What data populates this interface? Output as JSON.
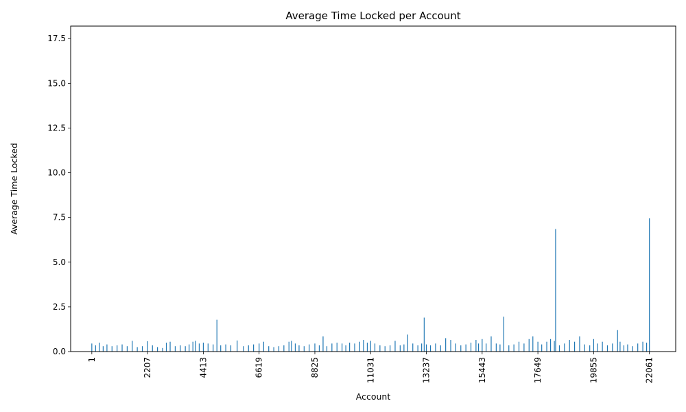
{
  "chart_data": {
    "type": "bar",
    "title": "Average Time Locked per Account",
    "xlabel": "Account",
    "ylabel": "Average Time Locked",
    "xlim": [
      -836,
      23101
    ],
    "ylim": [
      0,
      18.2
    ],
    "x_ticks": [
      1,
      2207,
      4413,
      6619,
      8825,
      11031,
      13237,
      15443,
      17649,
      19855,
      22061
    ],
    "y_ticks": [
      0.0,
      2.5,
      5.0,
      7.5,
      10.0,
      12.5,
      15.0,
      17.5
    ],
    "y_tick_labels": [
      "0.0",
      "2.5",
      "5.0",
      "7.5",
      "10.0",
      "12.5",
      "15.0",
      "17.5"
    ],
    "bar_color": "#1f77b4",
    "grid": false,
    "series": [
      {
        "x": [
          1,
          150,
          300,
          450,
          600,
          800,
          1000,
          1200,
          1400,
          1600,
          1800,
          2000,
          2207,
          2400,
          2600,
          2800,
          2950,
          3100,
          3300,
          3500,
          3700,
          3850,
          4000,
          4100,
          4250,
          4413,
          4600,
          4800,
          4950,
          5100,
          5300,
          5500,
          5750,
          6000,
          6200,
          6400,
          6619,
          6800,
          7000,
          7200,
          7400,
          7600,
          7800,
          7900,
          8050,
          8200,
          8400,
          8600,
          8825,
          9000,
          9150,
          9300,
          9500,
          9700,
          9900,
          10050,
          10200,
          10400,
          10600,
          10750,
          10900,
          11031,
          11200,
          11400,
          11600,
          11800,
          12000,
          12200,
          12350,
          12500,
          12700,
          12900,
          13050,
          13150,
          13237,
          13400,
          13600,
          13800,
          14000,
          14200,
          14400,
          14600,
          14800,
          15000,
          15200,
          15300,
          15443,
          15600,
          15800,
          16000,
          16150,
          16300,
          16500,
          16700,
          16900,
          17100,
          17300,
          17450,
          17649,
          17800,
          18000,
          18150,
          18300,
          18350,
          18500,
          18700,
          18900,
          19100,
          19300,
          19500,
          19700,
          19855,
          20000,
          20200,
          20400,
          20600,
          20800,
          20900,
          21050,
          21200,
          21400,
          21600,
          21800,
          21950,
          22061
        ],
        "values": [
          0.45,
          0.35,
          0.5,
          0.3,
          0.4,
          0.3,
          0.35,
          0.4,
          0.3,
          0.6,
          0.25,
          0.3,
          0.58,
          0.35,
          0.25,
          0.2,
          0.5,
          0.55,
          0.3,
          0.35,
          0.3,
          0.4,
          0.55,
          0.6,
          0.45,
          0.5,
          0.45,
          0.4,
          1.78,
          0.35,
          0.4,
          0.35,
          0.62,
          0.3,
          0.35,
          0.4,
          0.45,
          0.55,
          0.3,
          0.25,
          0.3,
          0.35,
          0.55,
          0.6,
          0.45,
          0.35,
          0.3,
          0.4,
          0.45,
          0.35,
          0.85,
          0.3,
          0.45,
          0.5,
          0.45,
          0.35,
          0.5,
          0.45,
          0.55,
          0.65,
          0.5,
          0.6,
          0.45,
          0.35,
          0.3,
          0.35,
          0.6,
          0.35,
          0.4,
          0.95,
          0.45,
          0.35,
          0.45,
          1.9,
          0.4,
          0.35,
          0.45,
          0.35,
          0.75,
          0.65,
          0.45,
          0.35,
          0.4,
          0.5,
          0.65,
          0.45,
          0.7,
          0.45,
          0.85,
          0.45,
          0.4,
          1.95,
          0.35,
          0.4,
          0.55,
          0.45,
          0.7,
          0.85,
          0.55,
          0.4,
          0.55,
          0.7,
          0.6,
          6.85,
          0.35,
          0.45,
          0.65,
          0.55,
          0.85,
          0.4,
          0.35,
          0.7,
          0.45,
          0.55,
          0.35,
          0.45,
          1.2,
          0.55,
          0.35,
          0.4,
          0.3,
          0.45,
          0.55,
          0.5,
          7.45
        ]
      }
    ]
  }
}
